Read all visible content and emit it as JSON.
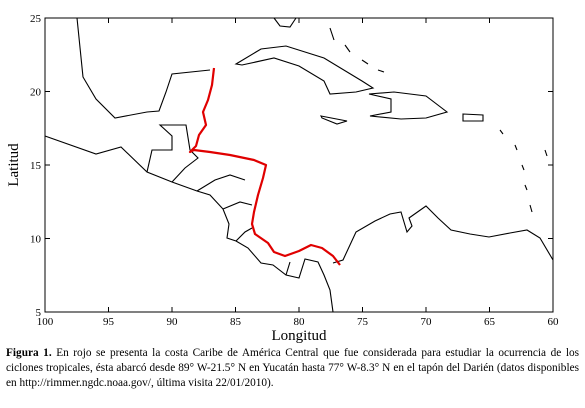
{
  "chart_data": {
    "type": "map",
    "xlabel": "Longitud",
    "ylabel": "Latitud",
    "xlim": [
      100,
      60
    ],
    "ylim": [
      5,
      25
    ],
    "xticks": [
      100,
      95,
      90,
      85,
      80,
      75,
      70,
      65,
      60
    ],
    "yticks": [
      5,
      10,
      15,
      20,
      25
    ],
    "highlight_color": "#e00000"
  },
  "caption": {
    "label": "Figura 1.",
    "text": "En rojo se presenta la costa Caribe de América Central que fue considerada para estudiar la ocurrencia de los ciclones tropicales, ésta abarcó desde 89° W-21.5° N en Yucatán hasta 77° W-8.3° N en el tapón del Darién (datos disponibles en http://rimmer.ngdc.noaa.gov/, última visita 22/01/2010)."
  }
}
